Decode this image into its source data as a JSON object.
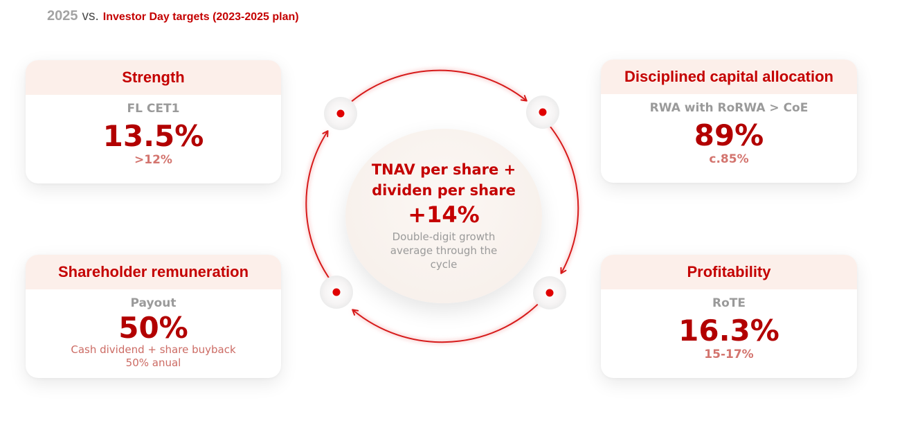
{
  "header": {
    "year": "2025",
    "vs": "vs.",
    "targets": "Investor Day targets (2023-2025 plan)"
  },
  "cards": {
    "strength": {
      "title": "Strength",
      "label": "FL CET1",
      "value": "13.5%",
      "target": ">12%"
    },
    "capital": {
      "title": "Disciplined capital allocation",
      "label": "RWA with RoRWA > CoE",
      "value": "89%",
      "target": "c.85%"
    },
    "shareholder": {
      "title": "Shareholder remuneration",
      "label": "Payout",
      "value": "50%",
      "target_line1": "Cash dividend + share buyback",
      "target_line2": "50% anual"
    },
    "profitability": {
      "title": "Profitability",
      "label": "RoTE",
      "value": "16.3%",
      "target": "15-17%"
    }
  },
  "center": {
    "title_line1": "TNAV per share +",
    "title_line2": "dividen per share",
    "value": "+14%",
    "desc_line1": "Double-digit growth",
    "desc_line2": "average through the",
    "desc_line3": "cycle"
  },
  "colors": {
    "accent": "#c40000",
    "value": "#b20000",
    "target": "#d3746e",
    "header_bg": "#fcefea",
    "muted": "#9a9a9a"
  }
}
